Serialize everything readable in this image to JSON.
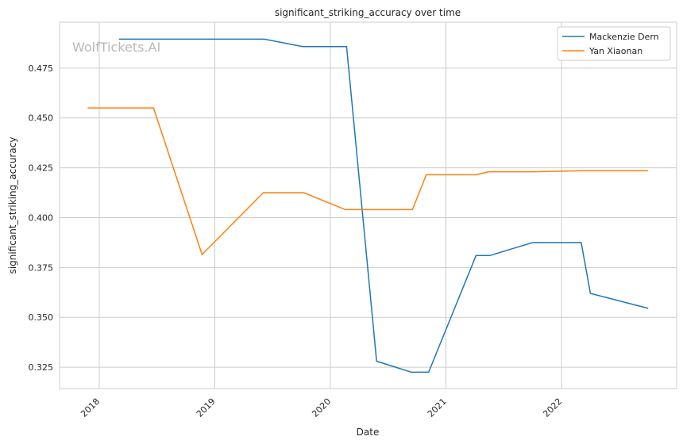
{
  "chart_data": {
    "type": "line",
    "title": "significant_striking_accuracy over time",
    "xlabel": "Date",
    "ylabel": "significant_striking_accuracy",
    "watermark": "WolfTickets.AI",
    "xlim": [
      2017.657,
      2022.996
    ],
    "ylim": [
      0.3143,
      0.498
    ],
    "x_ticks": [
      2018,
      2019,
      2020,
      2021,
      2022
    ],
    "x_tick_labels": [
      "2018",
      "2019",
      "2020",
      "2021",
      "2022"
    ],
    "y_ticks": [
      0.325,
      0.35,
      0.375,
      0.4,
      0.425,
      0.45,
      0.475
    ],
    "y_tick_labels": [
      "0.325",
      "0.350",
      "0.375",
      "0.400",
      "0.425",
      "0.450",
      "0.475"
    ],
    "grid": true,
    "legend_position": "top-right",
    "series": [
      {
        "name": "Mackenzie Dern",
        "color": "#1f77b4",
        "x": [
          2018.17,
          2019.43,
          2019.76,
          2020.14,
          2020.4,
          2020.7,
          2020.85,
          2021.26,
          2021.38,
          2021.75,
          2022.17,
          2022.25,
          2022.75
        ],
        "y": [
          0.4895,
          0.4895,
          0.4858,
          0.4858,
          0.328,
          0.3225,
          0.3225,
          0.381,
          0.381,
          0.3875,
          0.3875,
          0.362,
          0.3545
        ]
      },
      {
        "name": "Yan Xiaonan",
        "color": "#ff7f0e",
        "x": [
          2017.9,
          2018.47,
          2018.89,
          2019.42,
          2019.77,
          2020.13,
          2020.71,
          2020.83,
          2021.26,
          2021.37,
          2021.75,
          2022.16,
          2022.75
        ],
        "y": [
          0.455,
          0.455,
          0.3815,
          0.4125,
          0.4125,
          0.404,
          0.404,
          0.4215,
          0.4215,
          0.423,
          0.423,
          0.4235,
          0.4235
        ]
      }
    ]
  }
}
